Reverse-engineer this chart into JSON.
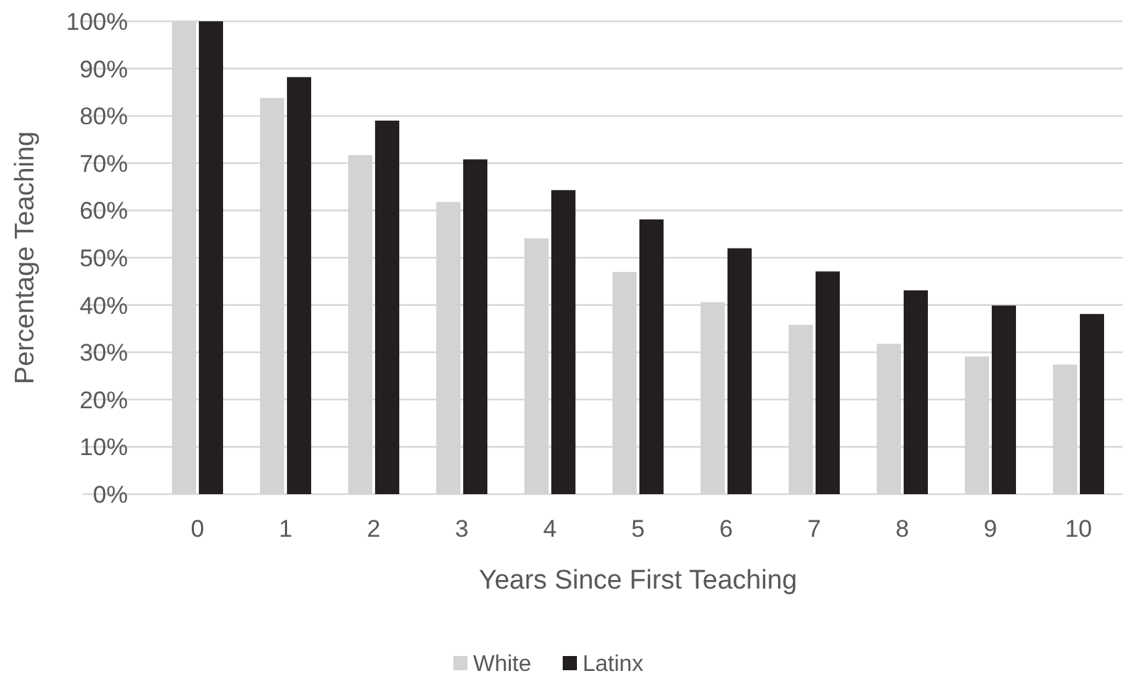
{
  "chart_data": {
    "type": "bar",
    "xlabel": "Years Since First Teaching",
    "ylabel": "Percentage Teaching",
    "categories": [
      "0",
      "1",
      "2",
      "3",
      "4",
      "5",
      "6",
      "7",
      "8",
      "9",
      "10"
    ],
    "series": [
      {
        "name": "White",
        "color": "#d3d3d5",
        "values": [
          100,
          83.8,
          71.7,
          61.8,
          54.1,
          47.0,
          40.6,
          35.8,
          31.8,
          29.1,
          27.4
        ]
      },
      {
        "name": "Latinx",
        "color": "#231f20",
        "values": [
          100,
          88.2,
          79.0,
          70.8,
          64.3,
          58.1,
          52.0,
          47.1,
          43.1,
          39.9,
          38.1
        ]
      }
    ],
    "ylim": [
      0,
      100
    ],
    "yticks": [
      {
        "value": 0,
        "label": "0%"
      },
      {
        "value": 10,
        "label": "10%"
      },
      {
        "value": 20,
        "label": "20%"
      },
      {
        "value": 30,
        "label": "30%"
      },
      {
        "value": 40,
        "label": "40%"
      },
      {
        "value": 50,
        "label": "50%"
      },
      {
        "value": 60,
        "label": "60%"
      },
      {
        "value": 70,
        "label": "70%"
      },
      {
        "value": 80,
        "label": "80%"
      },
      {
        "value": 90,
        "label": "90%"
      },
      {
        "value": 100,
        "label": "100%"
      }
    ],
    "grid": "y",
    "legend": "bottom"
  }
}
